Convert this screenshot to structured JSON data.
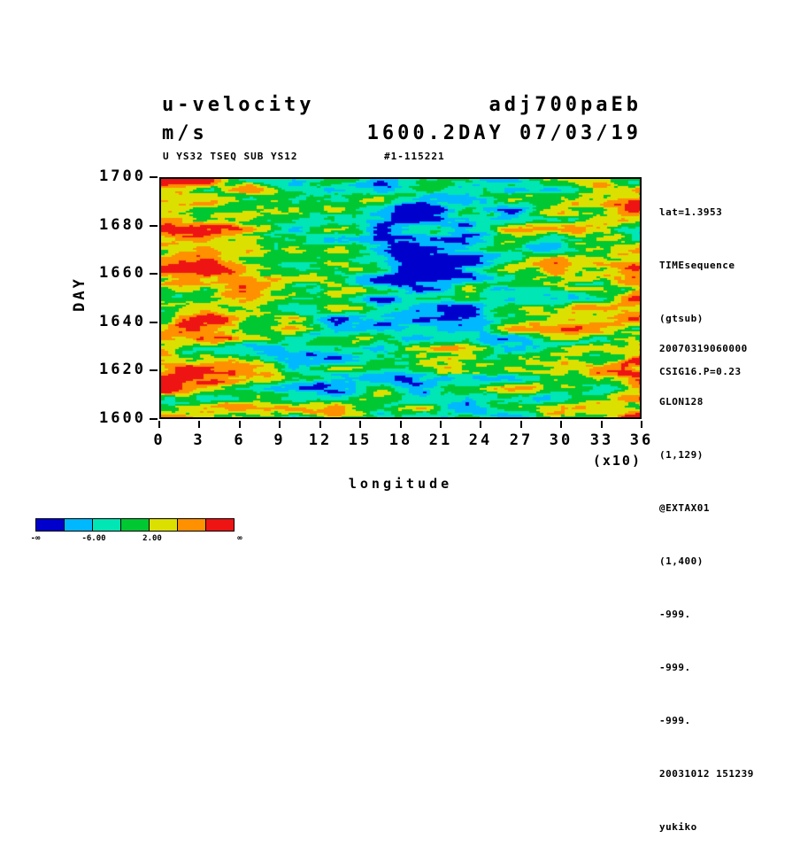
{
  "titles": {
    "left_line1": "u-velocity",
    "right_line1": "adj700paEb",
    "left_line2": "m/s",
    "right_line2": "1600.2DAY 07/03/19"
  },
  "subheader": {
    "left": "U YS32 TSEQ SUB YS12",
    "right": "#1-115221"
  },
  "axes": {
    "y_label": "DAY",
    "x_label": "longitude",
    "x_unit": "(x10)",
    "y_ticks": [
      "1700",
      "1680",
      "1660",
      "1640",
      "1620",
      "1600"
    ],
    "x_ticks": [
      "0",
      "3",
      "6",
      "9",
      "12",
      "15",
      "18",
      "21",
      "24",
      "27",
      "30",
      "33",
      "36"
    ]
  },
  "side_notes": {
    "group1": [
      "lat=1.3953",
      "TIMEsequence",
      "(gtsub)",
      "CSIG16.P=0.23"
    ],
    "group2": [
      "20070319060000",
      "GLON128",
      "(1,129)",
      "@EXTAX01",
      "(1,400)",
      "-999.",
      "-999.",
      "-999.",
      "20031012 151239",
      "yukiko"
    ]
  },
  "colorbar": {
    "colors": [
      "#0000cd",
      "#00b8ff",
      "#00e6b4",
      "#00c832",
      "#dce000",
      "#ff9000",
      "#ee1414"
    ],
    "labels": [
      "-∞",
      "-6.00",
      "2.00",
      "∞"
    ]
  },
  "chart_data": {
    "type": "heatmap",
    "title": "u-velocity adj700paEb",
    "subtitle": "1600.2DAY 07/03/19",
    "units": "m/s",
    "xlabel": "longitude (x10)",
    "ylabel": "DAY",
    "x_tick_values": [
      0,
      3,
      6,
      9,
      12,
      15,
      18,
      21,
      24,
      27,
      30,
      33,
      36
    ],
    "x_scale_factor": 10,
    "x_range_degrees": [
      0,
      360
    ],
    "y_tick_values": [
      1600,
      1620,
      1640,
      1660,
      1680,
      1700
    ],
    "y_range": [
      1600,
      1700
    ],
    "grid_note": "longitude points (1,129), time steps (1,400)",
    "levels": [
      -10,
      -6,
      -2,
      2,
      6,
      10
    ],
    "labeled_levels": [
      -6.0,
      2.0
    ],
    "palette": [
      "#0000cd",
      "#00b8ff",
      "#00e6b4",
      "#00c832",
      "#dce000",
      "#ff9000",
      "#ee1414"
    ],
    "legend_position": "bottom-left",
    "grid": false,
    "field_note": "Turbulent Hovmoller (longitude-time) shaded field of u-velocity in m/s; zonally elongated streaks; strong negative (blue) bands near longitudes 130-180 and 210-240, strong positive (red/orange) regions near 0-120 and 270-360."
  }
}
